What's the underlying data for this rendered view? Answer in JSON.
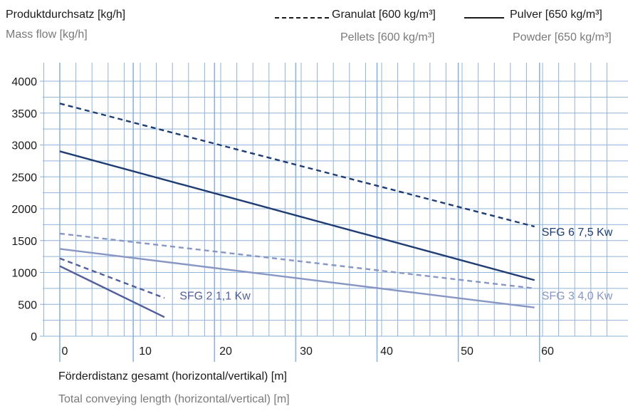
{
  "header": {
    "ylabel_de": "Produktdurchsatz [kg/h]",
    "ylabel_en": "Mass flow [kg/h]",
    "legend_dashed_de": "Granulat [600 kg/m³]",
    "legend_dashed_en": "Pellets [600 kg/m³]",
    "legend_solid_de": "Pulver [650 kg/m³]",
    "legend_solid_en": "Powder [650 kg/m³]"
  },
  "footer": {
    "xlabel_de": "Förderdistanz gesamt (horizontal/vertikal) [m]",
    "xlabel_en": "Total conveying length (horizontal/vertical) [m]"
  },
  "colors": {
    "grid": "#8fb3d9",
    "sfg6": "#1f3d73",
    "sfg3": "#8896c4",
    "sfg2": "#525f9a",
    "tick_text": "#1a1a1a"
  },
  "chart_data": {
    "type": "line",
    "xlabel": "Förderdistanz gesamt (horizontal/vertikal) [m]",
    "ylabel": "Produktdurchsatz [kg/h]",
    "xlim": [
      -2,
      69
    ],
    "ylim": [
      0,
      4000
    ],
    "x_ticks": [
      "0",
      "10",
      "20",
      "30",
      "40",
      "50",
      "60"
    ],
    "y_ticks": [
      "0",
      "500",
      "1000",
      "1500",
      "2000",
      "2500",
      "3000",
      "3500",
      "4000"
    ],
    "grid": true,
    "legend_position": "top",
    "series": [
      {
        "group": "SFG 6",
        "style": "dashed",
        "color": "#1f3d73",
        "x": [
          0,
          59
        ],
        "y": [
          3650,
          1720
        ]
      },
      {
        "group": "SFG 6",
        "style": "solid",
        "color": "#1f3d73",
        "x": [
          0,
          59
        ],
        "y": [
          2900,
          880
        ]
      },
      {
        "group": "SFG 3",
        "style": "dashed",
        "color": "#8896c4",
        "x": [
          0,
          59
        ],
        "y": [
          1610,
          750
        ]
      },
      {
        "group": "SFG 3",
        "style": "solid",
        "color": "#8896c4",
        "x": [
          0,
          59
        ],
        "y": [
          1370,
          450
        ]
      },
      {
        "group": "SFG 2",
        "style": "dashed",
        "color": "#525f9a",
        "x": [
          0,
          13
        ],
        "y": [
          1220,
          600
        ]
      },
      {
        "group": "SFG 2",
        "style": "solid",
        "color": "#525f9a",
        "x": [
          0,
          13
        ],
        "y": [
          1100,
          300
        ]
      }
    ],
    "annotations": [
      {
        "text": "SFG 6  7,5 Kw",
        "color": "#1f3d73",
        "anchor_x": 59,
        "anchor_y": 1600
      },
      {
        "text": "SFG 3  4,0 Kw",
        "color": "#8896c4",
        "anchor_x": 59,
        "anchor_y": 600
      },
      {
        "text": "SFG 2  1,1 Kw",
        "color": "#525f9a",
        "anchor_x": 14,
        "anchor_y": 600
      }
    ]
  }
}
